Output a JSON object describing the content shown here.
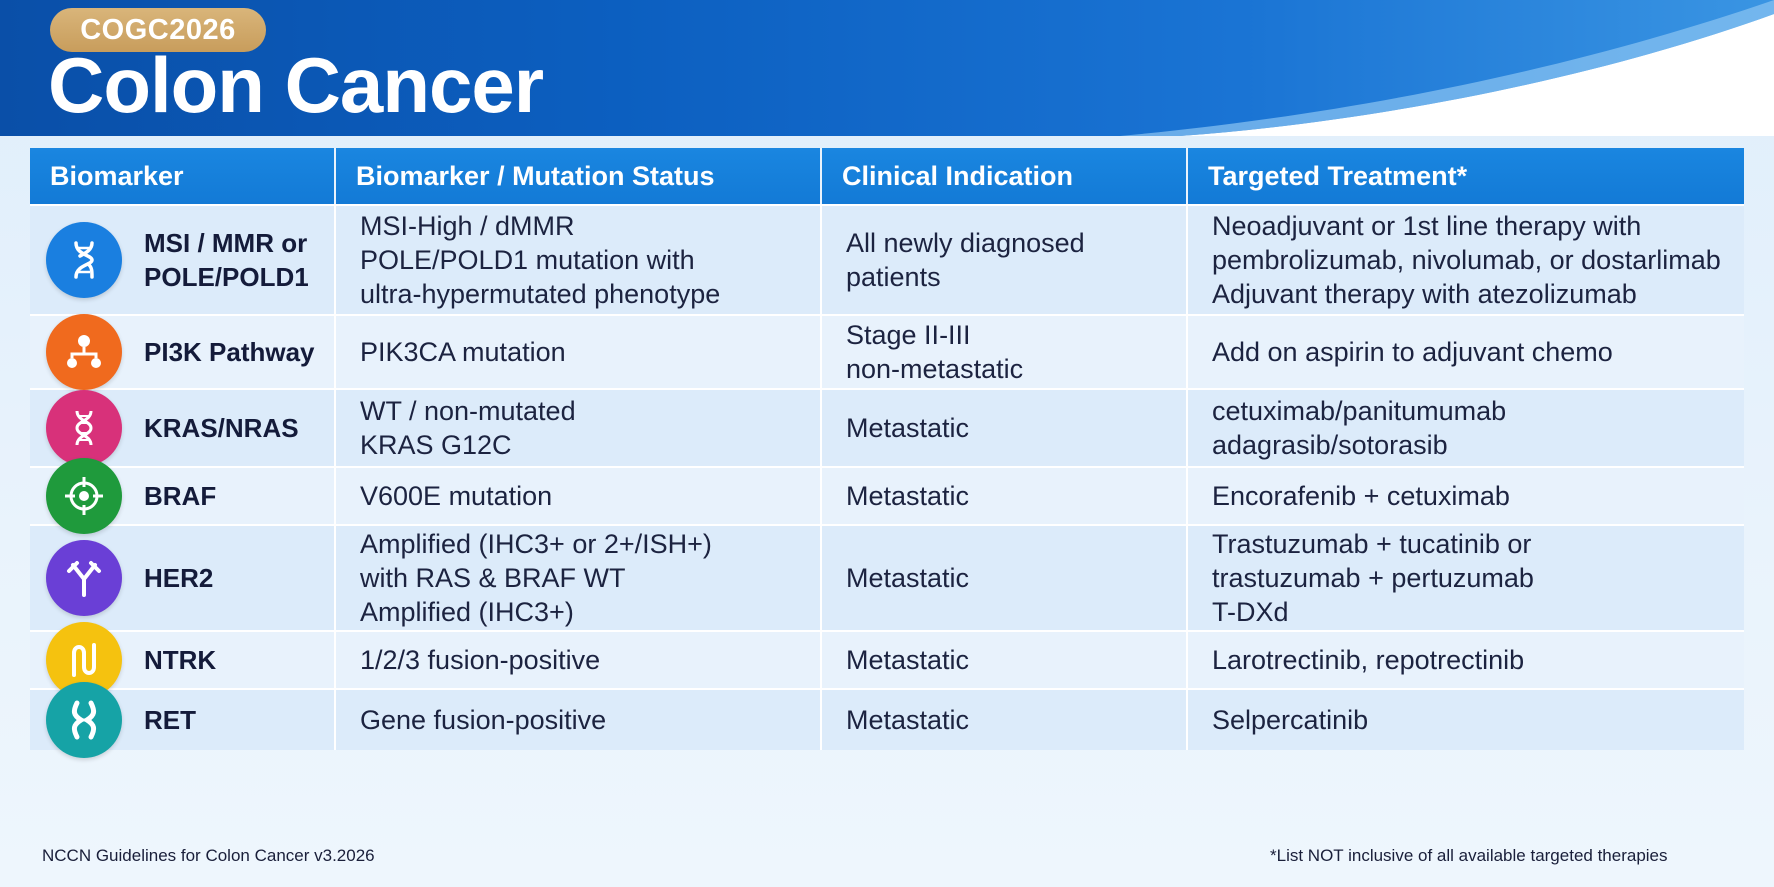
{
  "header": {
    "badge": "COGC2026",
    "title": "Colon Cancer"
  },
  "table": {
    "columns": [
      "Biomarker",
      "Biomarker / Mutation Status",
      "Clinical Indication",
      "Targeted Treatment*"
    ],
    "rows": [
      {
        "icon": "dna-icon",
        "icon_color": "#1a7fe0",
        "biomarker": [
          "MSI / MMR or",
          "POLE/POLD1"
        ],
        "status": [
          "MSI-High / dMMR",
          "POLE/POLD1 mutation with",
          "ultra-hypermutated phenotype"
        ],
        "indication": [
          "All newly diagnosed",
          "patients"
        ],
        "treatment": [
          "Neoadjuvant or 1st line therapy with",
          "pembrolizumab, nivolumab, or dostarlimab",
          "Adjuvant therapy with atezolizumab"
        ]
      },
      {
        "icon": "pathway-icon",
        "icon_color": "#f06a1e",
        "biomarker": [
          "PI3K Pathway"
        ],
        "status": [
          "PIK3CA mutation"
        ],
        "indication": [
          "Stage II-III",
          "non-metastatic"
        ],
        "treatment": [
          "Add on aspirin to adjuvant chemo"
        ]
      },
      {
        "icon": "dna-helix-icon",
        "icon_color": "#d8317a",
        "biomarker": [
          "KRAS/NRAS"
        ],
        "status": [
          "WT / non-mutated",
          "KRAS G12C"
        ],
        "indication": [
          "Metastatic"
        ],
        "treatment": [
          "cetuximab/panitumumab",
          "adagrasib/sotorasib"
        ]
      },
      {
        "icon": "target-icon",
        "icon_color": "#1f9a3c",
        "biomarker": [
          "BRAF"
        ],
        "status": [
          "V600E mutation"
        ],
        "indication": [
          "Metastatic"
        ],
        "treatment": [
          "Encorafenib + cetuximab"
        ]
      },
      {
        "icon": "antibody-icon",
        "icon_color": "#6a3fd6",
        "biomarker": [
          "HER2"
        ],
        "status": [
          "Amplified (IHC3+ or 2+/ISH+)",
          "with RAS & BRAF WT",
          "Amplified (IHC3+)"
        ],
        "indication": [
          "Metastatic"
        ],
        "treatment": [
          "Trastuzumab + tucatinib or",
          "trastuzumab + pertuzumab",
          "T-DXd"
        ]
      },
      {
        "icon": "fusion-icon",
        "icon_color": "#f5c20f",
        "biomarker": [
          "NTRK"
        ],
        "status": [
          "1/2/3 fusion-positive"
        ],
        "indication": [
          "Metastatic"
        ],
        "treatment": [
          "Larotrectinib, repotrectinib"
        ]
      },
      {
        "icon": "chromosome-icon",
        "icon_color": "#16a3a6",
        "biomarker": [
          "RET"
        ],
        "status": [
          "Gene fusion-positive"
        ],
        "indication": [
          "Metastatic"
        ],
        "treatment": [
          "Selpercatinib"
        ]
      }
    ]
  },
  "footer": {
    "source": "NCCN Guidelines for Colon Cancer v3.2026",
    "note": "*List NOT inclusive of all available targeted therapies"
  }
}
